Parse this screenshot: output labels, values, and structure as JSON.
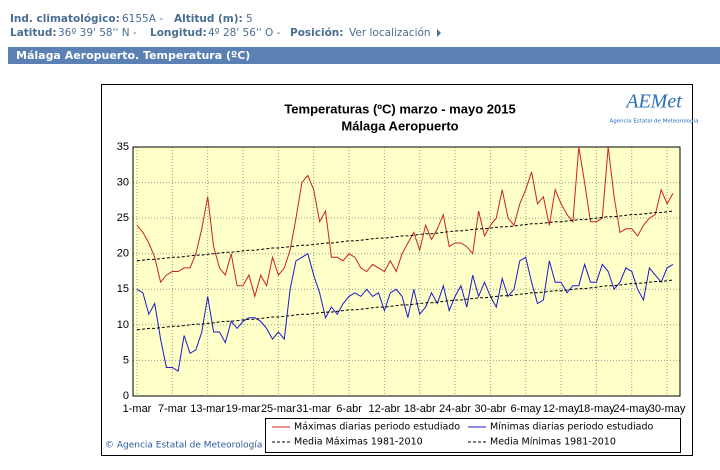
{
  "header": {
    "ind_label": "Ind. climatológico:",
    "ind_value": "6155A -",
    "alt_label": "Altitud (m):",
    "alt_value": "5",
    "lat_label": "Latitud:",
    "lat_value": "36º 39' 58'' N -",
    "lon_label": "Longitud:",
    "lon_value": "4º 28' 56'' O -",
    "pos_label": "Posición:",
    "pos_link": "Ver localización",
    "section": "Málaga Aeropuerto. Temperatura (ºC)",
    "logo": "AEMet",
    "logo_sub": "Agencia Estatal de Meteorología",
    "copyright": "© Agencia Estatal de Meteorología"
  },
  "chart_data": {
    "type": "line",
    "title": "Temperaturas (ºC) marzo - mayo 2015",
    "subtitle": "Málaga Aeropuerto",
    "categories": [
      "1-mar",
      null,
      null,
      null,
      null,
      null,
      "7-mar",
      null,
      null,
      null,
      null,
      null,
      "13-mar",
      null,
      null,
      null,
      null,
      null,
      "19-mar",
      null,
      null,
      null,
      null,
      null,
      "25-mar",
      null,
      null,
      null,
      null,
      null,
      "31-mar",
      null,
      null,
      null,
      null,
      null,
      "6-abr",
      null,
      null,
      null,
      null,
      null,
      "12-abr",
      null,
      null,
      null,
      null,
      null,
      "18-abr",
      null,
      null,
      null,
      null,
      null,
      "24-abr",
      null,
      null,
      null,
      null,
      null,
      "30-abr",
      null,
      null,
      null,
      null,
      null,
      "6-may",
      null,
      null,
      null,
      null,
      null,
      "12-may",
      null,
      null,
      null,
      null,
      null,
      "18-may",
      null,
      null,
      null,
      null,
      null,
      "24-may",
      null,
      null,
      null,
      null,
      null,
      "30-may",
      null
    ],
    "ylim": [
      0,
      35
    ],
    "yticks": [
      0,
      5,
      10,
      15,
      20,
      25,
      30,
      35
    ],
    "grid": true,
    "plot_background": "#ffffc8",
    "series": [
      {
        "name": "Máximas diarias periodo estudiado",
        "color": "#cc2222",
        "style": "solid",
        "values": [
          24,
          23,
          21.5,
          19.5,
          16,
          17,
          17.5,
          17.5,
          18,
          18,
          20,
          23.5,
          28,
          21,
          18,
          17,
          20,
          15.5,
          15.5,
          17,
          14,
          17,
          15.5,
          19.5,
          17,
          18,
          20.5,
          25,
          30,
          31,
          29,
          24.5,
          26,
          19.5,
          19.5,
          19,
          20,
          19.5,
          18,
          17.5,
          18.5,
          18,
          17.5,
          19,
          17.5,
          20,
          21.5,
          23,
          20.5,
          24,
          22,
          23.5,
          25.5,
          21,
          21.5,
          21.5,
          21,
          20,
          26,
          22.5,
          24,
          25,
          29,
          25,
          24,
          27,
          29,
          31.5,
          27,
          28,
          24,
          29,
          27,
          25.5,
          24.5,
          35,
          30,
          24.5,
          24.5,
          25,
          35,
          28,
          23,
          23.5,
          23.5,
          22.5,
          24,
          25,
          25.5,
          29,
          27,
          28.5
        ]
      },
      {
        "name": "Mínimas diarias periodo estudiado",
        "color": "#1a1acc",
        "style": "solid",
        "values": [
          15,
          14.5,
          11.5,
          13,
          8,
          4,
          4,
          3.5,
          8.5,
          6,
          6.5,
          9,
          14,
          9,
          9,
          7.5,
          10.5,
          9.5,
          10.5,
          11,
          11,
          10.5,
          9.5,
          8,
          9,
          8,
          15,
          19,
          19.5,
          20,
          17,
          14.5,
          11,
          12.5,
          11.5,
          13,
          14,
          14.5,
          14,
          15,
          14,
          14.5,
          12,
          14.5,
          15,
          14,
          11,
          15,
          11.5,
          12.5,
          14.5,
          13,
          15.5,
          12,
          14,
          15.5,
          12.5,
          17,
          14,
          16,
          14,
          12.5,
          16.5,
          14,
          15,
          19,
          19.5,
          16,
          13,
          13.5,
          19,
          16,
          16,
          14.5,
          15.5,
          15.5,
          18.5,
          16,
          16,
          18.5,
          17.5,
          15,
          16,
          18,
          17.5,
          15,
          13.5,
          18,
          17,
          16,
          18,
          18.5
        ]
      },
      {
        "name": "Media Máximas 1981-2010",
        "color": "#000000",
        "style": "dashed",
        "values": [
          19.0,
          19.1,
          19.2,
          19.2,
          19.3,
          19.4,
          19.5,
          19.5,
          19.6,
          19.7,
          19.8,
          19.8,
          19.9,
          20.0,
          20.1,
          20.2,
          20.2,
          20.3,
          20.4,
          20.5,
          20.5,
          20.6,
          20.7,
          20.8,
          20.8,
          20.9,
          21.0,
          21.1,
          21.2,
          21.2,
          21.3,
          21.4,
          21.5,
          21.5,
          21.6,
          21.7,
          21.8,
          21.8,
          21.9,
          22.0,
          22.1,
          22.2,
          22.2,
          22.3,
          22.4,
          22.5,
          22.5,
          22.6,
          22.7,
          22.8,
          22.8,
          22.9,
          23.0,
          23.1,
          23.2,
          23.2,
          23.3,
          23.4,
          23.5,
          23.5,
          23.6,
          23.7,
          23.8,
          23.8,
          23.9,
          24.0,
          24.1,
          24.2,
          24.2,
          24.3,
          24.4,
          24.5,
          24.5,
          24.6,
          24.7,
          24.8,
          24.8,
          24.9,
          25.0,
          25.1,
          25.2,
          25.2,
          25.3,
          25.4,
          25.5,
          25.5,
          25.6,
          25.7,
          25.8,
          25.8,
          25.9,
          26.0
        ]
      },
      {
        "name": "Media Mínimas 1981-2010",
        "color": "#000000",
        "style": "dashed",
        "values": [
          9.3,
          9.4,
          9.5,
          9.5,
          9.6,
          9.7,
          9.8,
          9.8,
          9.9,
          10.0,
          10.1,
          10.1,
          10.2,
          10.3,
          10.4,
          10.5,
          10.5,
          10.6,
          10.7,
          10.8,
          10.8,
          10.9,
          11.0,
          11.1,
          11.1,
          11.2,
          11.3,
          11.4,
          11.5,
          11.5,
          11.6,
          11.7,
          11.8,
          11.8,
          11.9,
          12.0,
          12.1,
          12.1,
          12.2,
          12.3,
          12.4,
          12.5,
          12.5,
          12.6,
          12.7,
          12.8,
          12.8,
          12.9,
          13.0,
          13.1,
          13.1,
          13.2,
          13.3,
          13.4,
          13.5,
          13.5,
          13.6,
          13.7,
          13.8,
          13.8,
          13.9,
          14.0,
          14.1,
          14.1,
          14.2,
          14.3,
          14.4,
          14.5,
          14.5,
          14.6,
          14.7,
          14.8,
          14.8,
          14.9,
          15.0,
          15.1,
          15.1,
          15.2,
          15.3,
          15.4,
          15.5,
          15.5,
          15.6,
          15.7,
          15.8,
          15.8,
          15.9,
          16.0,
          16.1,
          16.1,
          16.2,
          16.3
        ]
      }
    ]
  }
}
